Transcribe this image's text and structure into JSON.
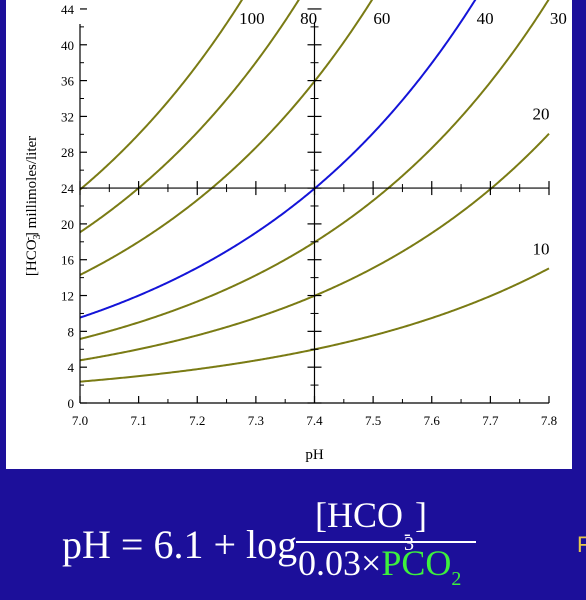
{
  "colors": {
    "background": "#1c0f9a",
    "curve": "#7a7b14",
    "highlight_curve": "#1414d8",
    "formula_accent": "#3df03d",
    "truncated_text": "#e6c84a"
  },
  "chart_data": {
    "type": "line",
    "title": "",
    "xlabel": "pH",
    "ylabel_main": "[HCO",
    "ylabel_sub": "3",
    "ylabel_sup": "-",
    "ylabel_rest": "] millimoles/liter",
    "xlim": [
      7.0,
      7.8
    ],
    "ylim": [
      0,
      45
    ],
    "x_ticks": [
      "7.0",
      "7.1",
      "7.2",
      "7.3",
      "7.4",
      "7.5",
      "7.6",
      "7.7",
      "7.8"
    ],
    "y_ticks": [
      "0",
      "4",
      "8",
      "12",
      "16",
      "20",
      "24",
      "28",
      "32",
      "36",
      "40",
      "44"
    ],
    "grid": false,
    "series": [
      {
        "name": "100",
        "pco2": 100,
        "highlight": false
      },
      {
        "name": "80",
        "pco2": 80,
        "highlight": false
      },
      {
        "name": "60",
        "pco2": 60,
        "highlight": false
      },
      {
        "name": "40",
        "pco2": 40,
        "highlight": true
      },
      {
        "name": "30",
        "pco2": 30,
        "highlight": false
      },
      {
        "name": "20",
        "pco2": 20,
        "highlight": false
      },
      {
        "name": "10",
        "pco2": 10,
        "highlight": false
      }
    ]
  },
  "formula": {
    "lhs": "pH = 6.1 + log",
    "numerator_pre": "[HCO",
    "numerator_sub": "3",
    "numerator_sup": "-",
    "numerator_post": "]",
    "denominator_pre": "0.03×",
    "denominator_accent": "PCO",
    "denominator_sub": "2",
    "truncated_text": "F"
  }
}
